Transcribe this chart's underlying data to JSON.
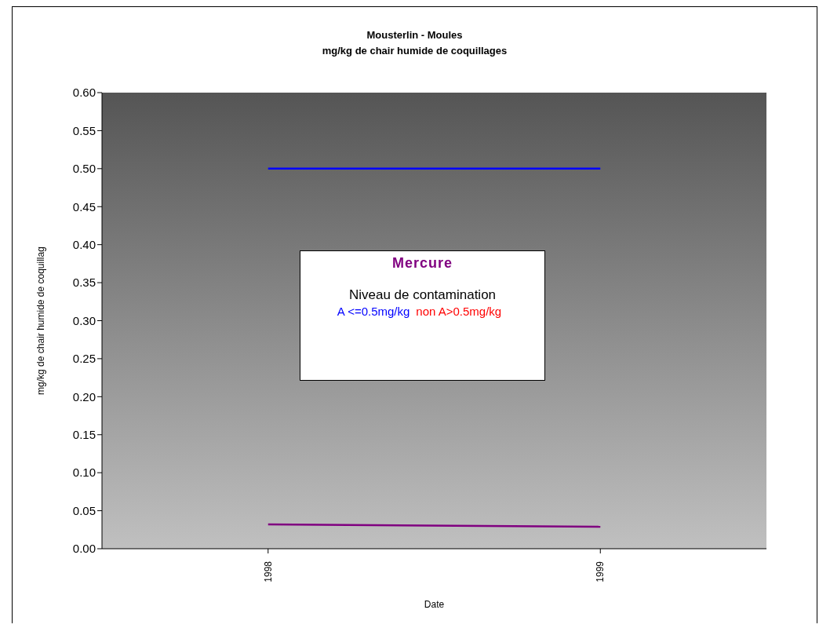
{
  "chart_data": {
    "type": "line",
    "title": "Mousterlin - Moules",
    "subtitle": "mg/kg de chair humide de coquillages",
    "xlabel": "Date",
    "ylabel": "mg/kg de chair humide de coquillag",
    "categories": [
      "1998",
      "1999"
    ],
    "series": [
      {
        "name": "Mercure",
        "color": "#800080",
        "values": [
          0.032,
          0.029
        ]
      },
      {
        "color": "#0000ff",
        "values": [
          0.5,
          0.5
        ]
      }
    ],
    "annotations": [
      "Niveau de contamination",
      "A <=0.5mg/kg",
      "non A>0.5mg/kg"
    ],
    "ylim": [
      0,
      0.6
    ],
    "yticks": [
      {
        "value": 0,
        "label": "0.00"
      },
      {
        "value": 0.05,
        "label": "0.05"
      },
      {
        "value": 0.1,
        "label": "0.10"
      },
      {
        "value": 0.15,
        "label": "0.15"
      },
      {
        "value": 0.2,
        "label": "0.20"
      },
      {
        "value": 0.25,
        "label": "0.25"
      },
      {
        "value": 0.3,
        "label": "0.30"
      },
      {
        "value": 0.35,
        "label": "0.35"
      },
      {
        "value": 0.4,
        "label": "0.40"
      },
      {
        "value": 0.45,
        "label": "0.45"
      },
      {
        "value": 0.5,
        "label": "0.50"
      },
      {
        "value": 0.55,
        "label": "0.55"
      },
      {
        "value": 0.6,
        "label": "0.60"
      }
    ],
    "marker": "none",
    "line_style": "solid"
  }
}
